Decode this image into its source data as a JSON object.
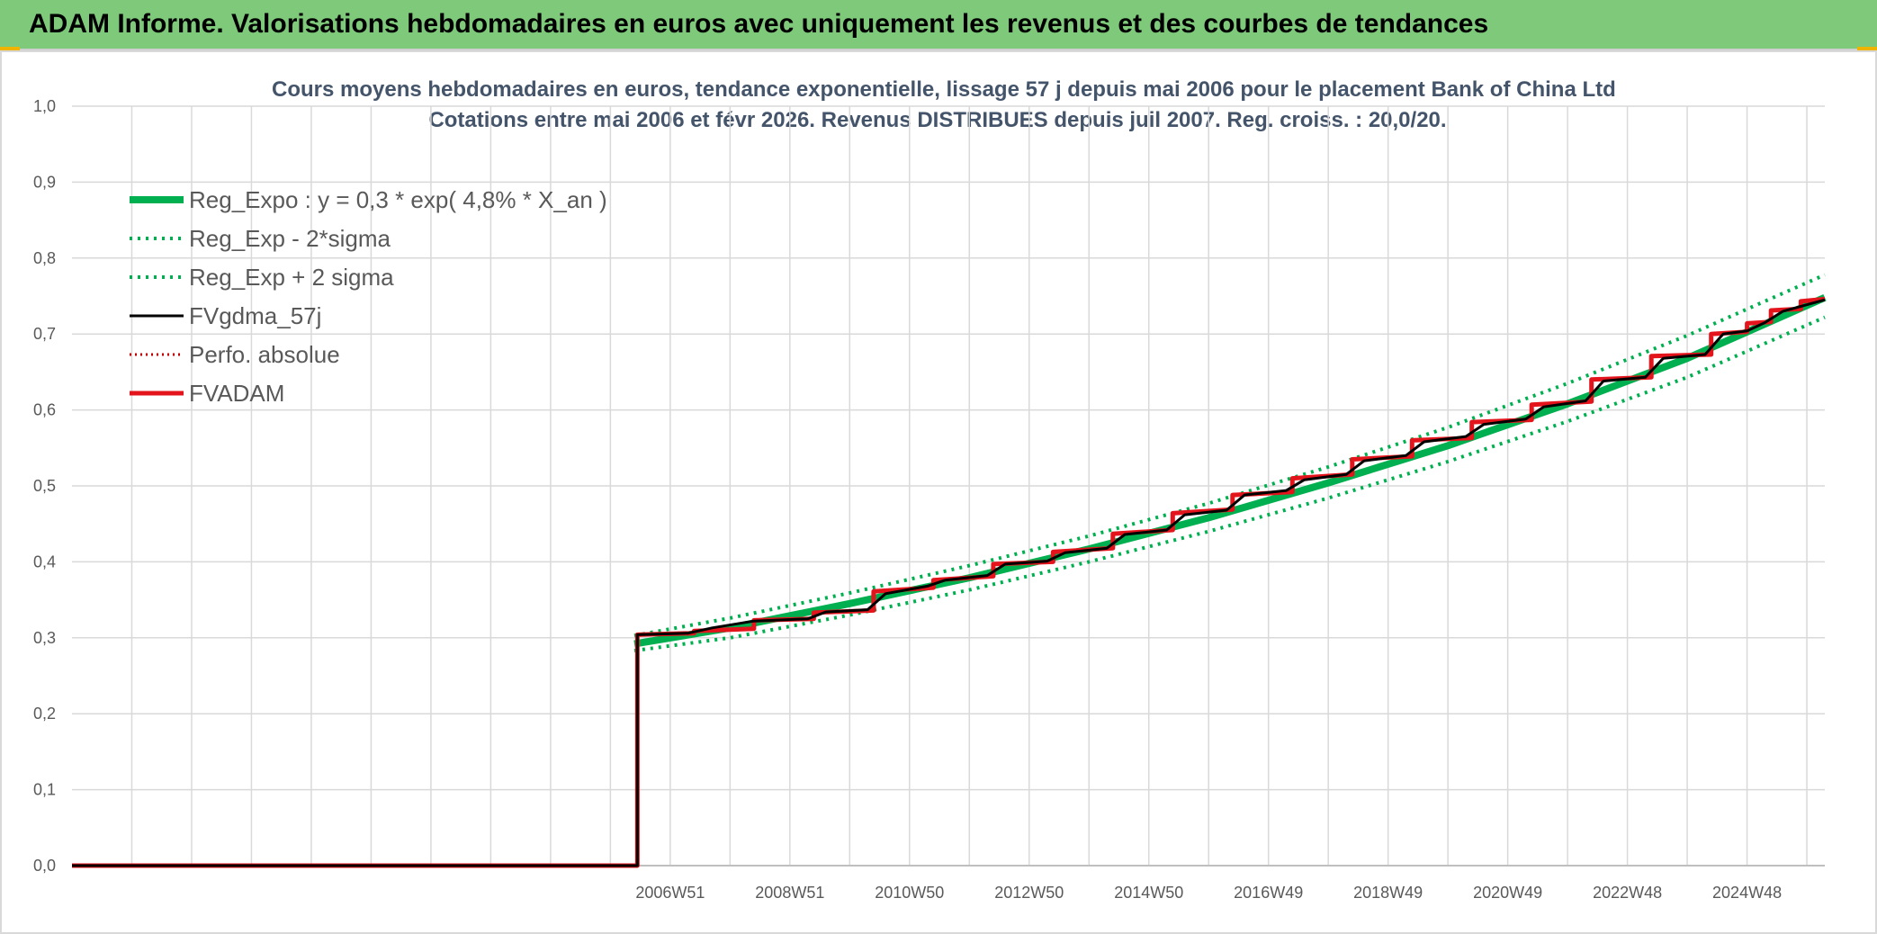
{
  "banner": {
    "title": "ADAM Informe. Valorisations hebdomadaires en euros avec uniquement les revenus et des courbes de tendances"
  },
  "colors": {
    "banner_bg": "#7ec97a",
    "reg_expo": "#00b050",
    "sigma": "#00b050",
    "fvgdma": "#000000",
    "perfo": "#c00000",
    "fvadam": "#e3141b",
    "grid": "#d9d9d9"
  },
  "chart_data": {
    "type": "line",
    "title": "Cours moyens hebdomadaires en euros, tendance exponentielle, lissage 57 j depuis mai 2006 pour le placement Bank of China Ltd",
    "subtitle": "Cotations entre mai 2006 et févr 2026. Revenus DISTRIBUES depuis juil 2007. Reg. croiss. : 20,0/20.",
    "xlabel": "",
    "ylabel": "",
    "ylim": [
      0,
      1
    ],
    "y_ticks": [
      "0,0",
      "0,1",
      "0,2",
      "0,3",
      "0,4",
      "0,5",
      "0,6",
      "0,7",
      "0,8",
      "0,9",
      "1,0"
    ],
    "x_range_years": [
      1997.0,
      2026.3
    ],
    "x_ticks": [
      {
        "year": 2007.0,
        "label": "2006W51"
      },
      {
        "year": 2009.0,
        "label": "2008W51"
      },
      {
        "year": 2011.0,
        "label": "2010W50"
      },
      {
        "year": 2013.0,
        "label": "2012W50"
      },
      {
        "year": 2015.0,
        "label": "2014W50"
      },
      {
        "year": 2017.0,
        "label": "2016W49"
      },
      {
        "year": 2019.0,
        "label": "2018W49"
      },
      {
        "year": 2021.0,
        "label": "2020W49"
      },
      {
        "year": 2023.0,
        "label": "2022W48"
      },
      {
        "year": 2025.0,
        "label": "2024W48"
      }
    ],
    "grid": true,
    "legend_position": "top-left",
    "series": [
      {
        "name": "Reg_Expo : y = 0,3 * exp( 4,8% *  X_an )",
        "style": "solid-thick",
        "points": [
          [
            2006.4,
            0.292
          ],
          [
            2008,
            0.313
          ],
          [
            2010,
            0.345
          ],
          [
            2012,
            0.379
          ],
          [
            2014,
            0.417
          ],
          [
            2016,
            0.458
          ],
          [
            2018,
            0.504
          ],
          [
            2020,
            0.553
          ],
          [
            2022,
            0.608
          ],
          [
            2024,
            0.668
          ],
          [
            2026.3,
            0.748
          ]
        ]
      },
      {
        "name": "Reg_Exp - 2*sigma",
        "style": "dotted",
        "points": [
          [
            2006.4,
            0.283
          ],
          [
            2008,
            0.3
          ],
          [
            2010,
            0.33
          ],
          [
            2012,
            0.363
          ],
          [
            2014,
            0.4
          ],
          [
            2016,
            0.44
          ],
          [
            2018,
            0.484
          ],
          [
            2020,
            0.532
          ],
          [
            2022,
            0.585
          ],
          [
            2024,
            0.643
          ],
          [
            2026.3,
            0.722
          ]
        ]
      },
      {
        "name": "Reg_Exp + 2 sigma",
        "style": "dotted",
        "points": [
          [
            2006.4,
            0.303
          ],
          [
            2008,
            0.326
          ],
          [
            2010,
            0.359
          ],
          [
            2012,
            0.395
          ],
          [
            2014,
            0.434
          ],
          [
            2016,
            0.477
          ],
          [
            2018,
            0.525
          ],
          [
            2020,
            0.577
          ],
          [
            2022,
            0.635
          ],
          [
            2024,
            0.698
          ],
          [
            2026.3,
            0.778
          ]
        ]
      },
      {
        "name": "FVgdma_57j",
        "style": "solid",
        "points": [
          [
            1997.0,
            0.0
          ],
          [
            2006.45,
            0.0
          ],
          [
            2006.45,
            0.304
          ],
          [
            2007.3,
            0.306
          ],
          [
            2007.7,
            0.313
          ],
          [
            2008.4,
            0.322
          ],
          [
            2009.3,
            0.325
          ],
          [
            2009.6,
            0.334
          ],
          [
            2010.3,
            0.337
          ],
          [
            2010.6,
            0.358
          ],
          [
            2011.3,
            0.368
          ],
          [
            2011.6,
            0.376
          ],
          [
            2012.3,
            0.382
          ],
          [
            2012.6,
            0.397
          ],
          [
            2013.3,
            0.401
          ],
          [
            2013.6,
            0.412
          ],
          [
            2014.3,
            0.418
          ],
          [
            2014.6,
            0.436
          ],
          [
            2015.3,
            0.442
          ],
          [
            2015.6,
            0.462
          ],
          [
            2016.3,
            0.468
          ],
          [
            2016.6,
            0.488
          ],
          [
            2017.3,
            0.494
          ],
          [
            2017.6,
            0.508
          ],
          [
            2018.3,
            0.515
          ],
          [
            2018.6,
            0.533
          ],
          [
            2019.3,
            0.54
          ],
          [
            2019.6,
            0.558
          ],
          [
            2020.3,
            0.565
          ],
          [
            2020.6,
            0.581
          ],
          [
            2021.3,
            0.588
          ],
          [
            2021.6,
            0.604
          ],
          [
            2022.3,
            0.612
          ],
          [
            2022.6,
            0.638
          ],
          [
            2023.3,
            0.643
          ],
          [
            2023.6,
            0.668
          ],
          [
            2024.3,
            0.673
          ],
          [
            2024.6,
            0.7
          ],
          [
            2025.0,
            0.704
          ],
          [
            2025.3,
            0.715
          ],
          [
            2025.6,
            0.73
          ],
          [
            2026.3,
            0.745
          ]
        ]
      },
      {
        "name": "Perfo. absolue",
        "style": "dotted",
        "points": [
          [
            1997.0,
            0.0
          ],
          [
            2006.45,
            0.0
          ]
        ]
      },
      {
        "name": "FVADAM",
        "style": "solid-thick",
        "points": [
          [
            1997.0,
            0.0
          ],
          [
            2006.45,
            0.0
          ],
          [
            2006.45,
            0.304
          ],
          [
            2007.4,
            0.306
          ],
          [
            2007.4,
            0.309
          ],
          [
            2008.4,
            0.312
          ],
          [
            2008.4,
            0.323
          ],
          [
            2009.4,
            0.325
          ],
          [
            2009.4,
            0.333
          ],
          [
            2010.4,
            0.336
          ],
          [
            2010.4,
            0.361
          ],
          [
            2011.4,
            0.366
          ],
          [
            2011.4,
            0.376
          ],
          [
            2012.4,
            0.381
          ],
          [
            2012.4,
            0.397
          ],
          [
            2013.4,
            0.4
          ],
          [
            2013.4,
            0.413
          ],
          [
            2014.4,
            0.418
          ],
          [
            2014.4,
            0.437
          ],
          [
            2015.4,
            0.442
          ],
          [
            2015.4,
            0.464
          ],
          [
            2016.4,
            0.469
          ],
          [
            2016.4,
            0.488
          ],
          [
            2017.4,
            0.492
          ],
          [
            2017.4,
            0.51
          ],
          [
            2018.4,
            0.515
          ],
          [
            2018.4,
            0.535
          ],
          [
            2019.4,
            0.539
          ],
          [
            2019.4,
            0.56
          ],
          [
            2020.4,
            0.563
          ],
          [
            2020.4,
            0.584
          ],
          [
            2021.4,
            0.587
          ],
          [
            2021.4,
            0.607
          ],
          [
            2022.4,
            0.611
          ],
          [
            2022.4,
            0.64
          ],
          [
            2023.4,
            0.643
          ],
          [
            2023.4,
            0.671
          ],
          [
            2024.4,
            0.673
          ],
          [
            2024.4,
            0.7
          ],
          [
            2025.0,
            0.703
          ],
          [
            2025.0,
            0.714
          ],
          [
            2025.4,
            0.716
          ],
          [
            2025.4,
            0.731
          ],
          [
            2025.9,
            0.733
          ],
          [
            2025.9,
            0.743
          ],
          [
            2026.3,
            0.746
          ]
        ]
      }
    ]
  }
}
